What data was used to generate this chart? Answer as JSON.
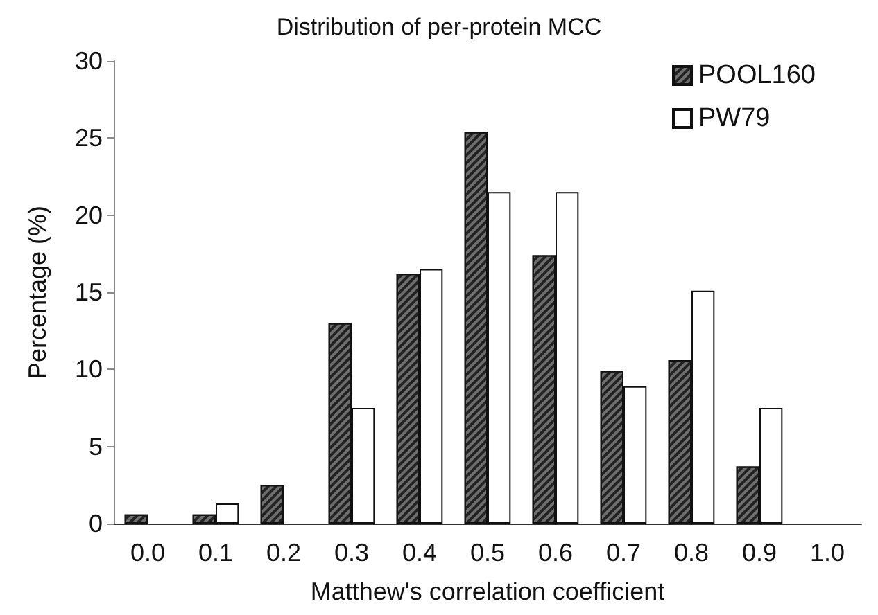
{
  "chart_data": {
    "type": "bar",
    "title": "Distribution of per-protein MCC",
    "xlabel": "Matthew's correlation coefficient",
    "ylabel": "Percentage (%)",
    "categories": [
      "0.0",
      "0.1",
      "0.2",
      "0.3",
      "0.4",
      "0.5",
      "0.6",
      "0.7",
      "0.8",
      "0.9",
      "1.0"
    ],
    "series": [
      {
        "name": "POOL160",
        "color": "#6e6e6e",
        "values": [
          0.6,
          0.6,
          2.5,
          13.0,
          16.2,
          25.4,
          17.4,
          9.9,
          10.6,
          3.7,
          0
        ]
      },
      {
        "name": "PW79",
        "color": "#ffffff",
        "values": [
          0,
          1.3,
          0,
          7.5,
          16.5,
          21.5,
          21.5,
          8.9,
          15.1,
          7.5,
          0
        ]
      }
    ],
    "ylim": [
      0,
      30
    ],
    "yticks": [
      0,
      5,
      10,
      15,
      20,
      25,
      30
    ],
    "grid": false,
    "legend": "top right"
  }
}
